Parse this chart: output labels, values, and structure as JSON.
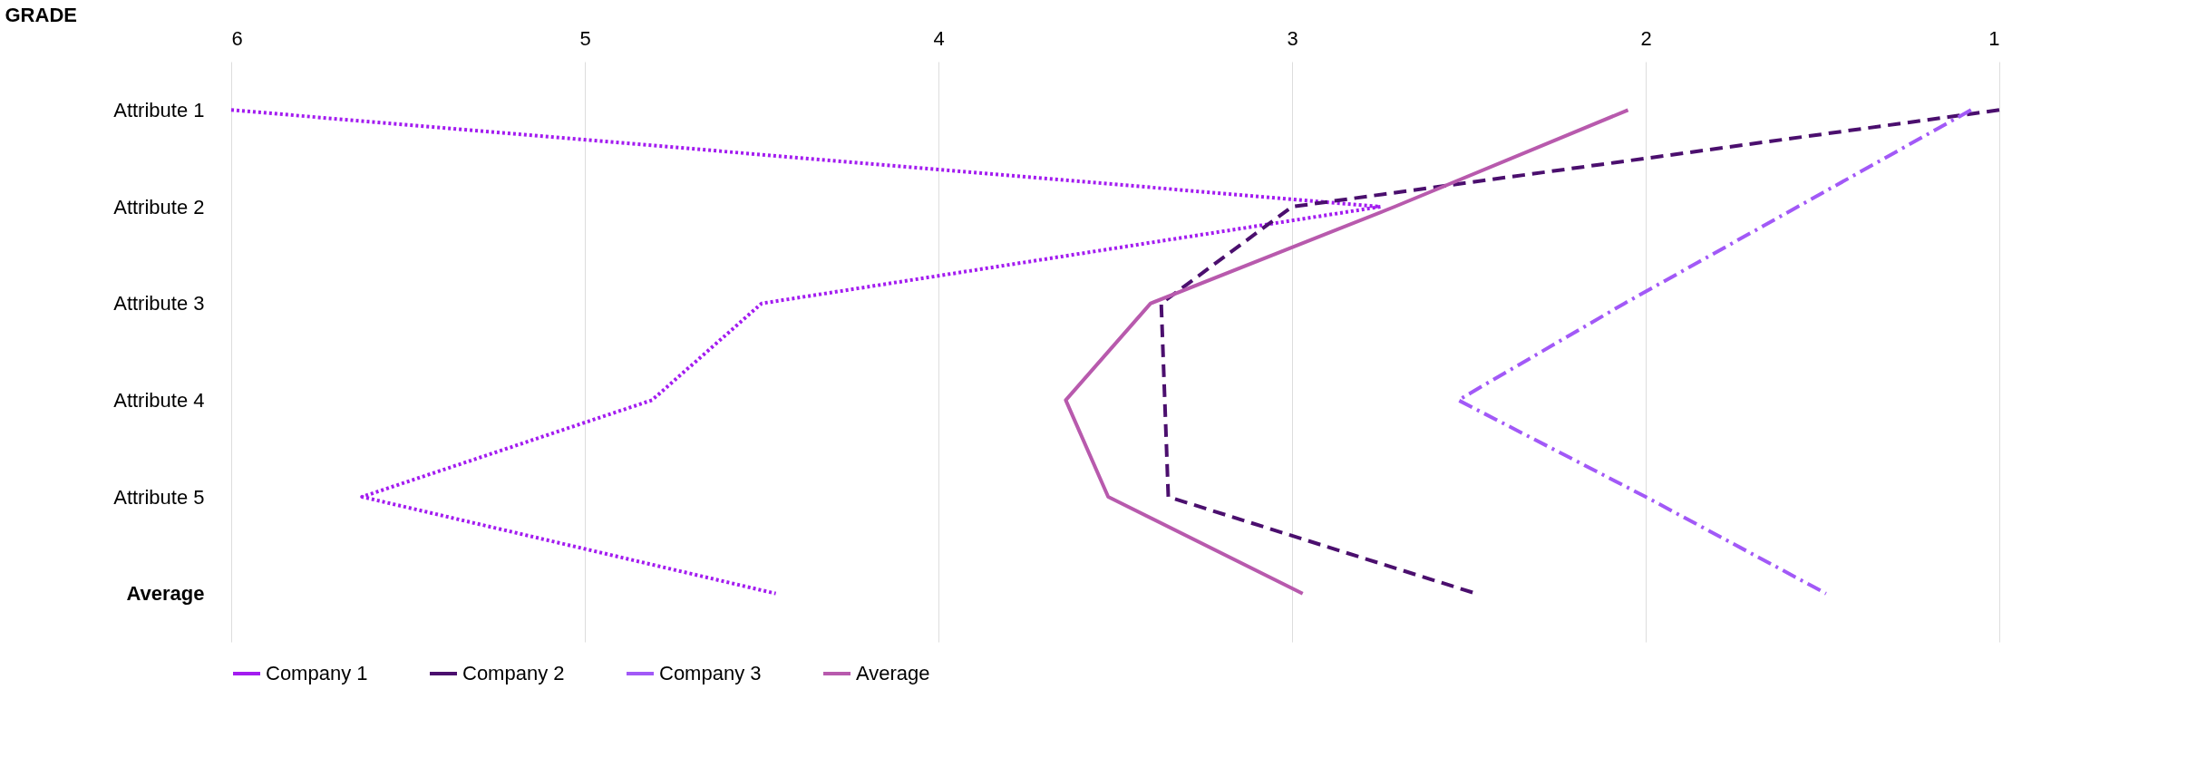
{
  "chart_data": {
    "type": "line",
    "ylabel": "GRADE",
    "categories": [
      "Attribute 1",
      "Attribute 2",
      "Attribute 3",
      "Attribute 4",
      "Attribute 5",
      "Average"
    ],
    "orientation": "horizontal",
    "xlim": [
      6,
      1
    ],
    "xticks": [
      6,
      5,
      4,
      3,
      2,
      1
    ],
    "grid": "x",
    "legend": "bottom",
    "marker": "none",
    "series": [
      {
        "name": "Company 1",
        "color": "#a31cf0",
        "line_style": "dotted",
        "values": [
          6.0,
          2.75,
          4.5,
          4.81,
          5.63,
          4.46
        ]
      },
      {
        "name": "Company 2",
        "color": "#4b0f6e",
        "line_style": "dashed",
        "values": [
          1.0,
          3.0,
          3.37,
          3.36,
          3.35,
          2.48
        ]
      },
      {
        "name": "Company 3",
        "color": "#a259f7",
        "line_style": "dashdot",
        "values": [
          1.08,
          1.57,
          2.06,
          2.53,
          2.0,
          1.49
        ]
      },
      {
        "name": "Average",
        "color": "#b85aad",
        "line_style": "solid",
        "values": [
          2.05,
          2.71,
          3.4,
          3.64,
          3.52,
          2.97
        ]
      }
    ]
  }
}
